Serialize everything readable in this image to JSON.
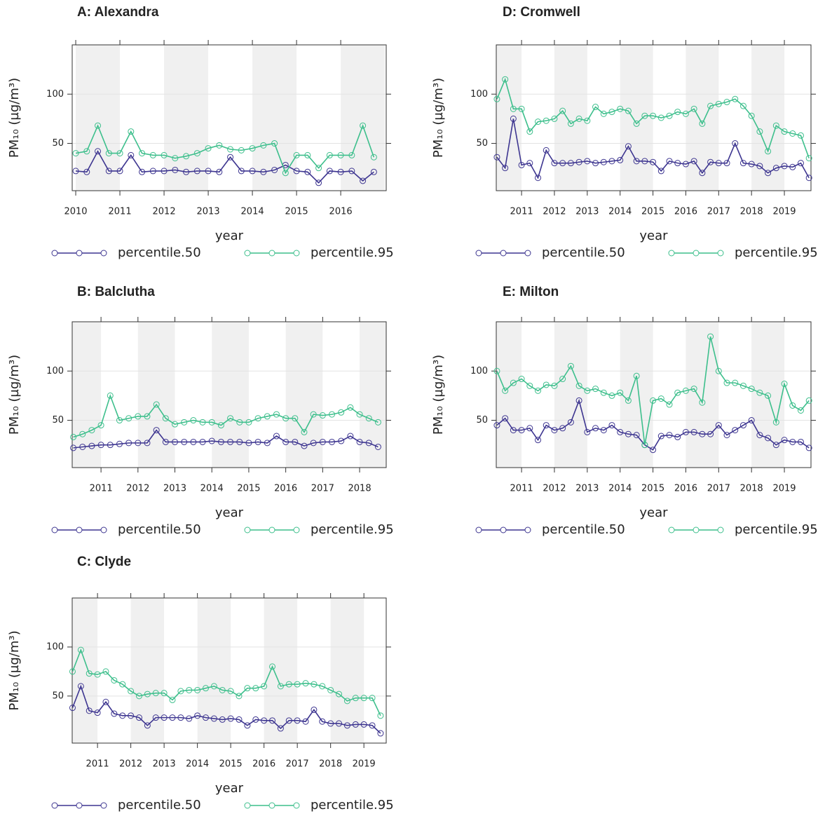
{
  "chart_data": [
    {
      "type": "line",
      "title": "A: Alexandra",
      "x_label": "year",
      "y_label": "PM₁₀ (µg/m³)",
      "x": [
        2010,
        2010.25,
        2010.5,
        2010.75,
        2011,
        2011.25,
        2011.5,
        2011.75,
        2012,
        2012.25,
        2012.5,
        2012.75,
        2013,
        2013.25,
        2013.5,
        2013.75,
        2014,
        2014.25,
        2014.5,
        2014.75,
        2015,
        2015.25,
        2015.5,
        2015.75,
        2016,
        2016.25,
        2016.5,
        2016.75
      ],
      "series": [
        {
          "name": "percentile.50",
          "color": "#3d3590",
          "values": [
            22,
            21,
            42,
            22,
            22,
            38,
            21,
            22,
            22,
            23,
            21,
            22,
            22,
            21,
            36,
            22,
            22,
            21,
            23,
            28,
            22,
            21,
            10,
            22,
            21,
            22,
            12,
            21
          ]
        },
        {
          "name": "percentile.95",
          "color": "#3dbf8c",
          "values": [
            40,
            42,
            68,
            40,
            40,
            62,
            40,
            38,
            38,
            35,
            37,
            40,
            45,
            48,
            44,
            43,
            45,
            48,
            50,
            20,
            38,
            38,
            25,
            38,
            38,
            38,
            68,
            36
          ]
        }
      ],
      "xlim": [
        2009.92,
        2017.03
      ],
      "ylim": [
        2,
        150
      ],
      "xticks": [
        2010,
        2011,
        2012,
        2013,
        2014,
        2015,
        2016
      ],
      "yticks": [
        50,
        100
      ],
      "grid": true,
      "year_shading": true
    },
    {
      "type": "line",
      "title": "B: Balclutha",
      "x_label": "year",
      "y_label": "PM₁₀ (µg/m³)",
      "x": [
        2010.25,
        2010.5,
        2010.75,
        2011,
        2011.25,
        2011.5,
        2011.75,
        2012,
        2012.25,
        2012.5,
        2012.75,
        2013,
        2013.25,
        2013.5,
        2013.75,
        2014,
        2014.25,
        2014.5,
        2014.75,
        2015,
        2015.25,
        2015.5,
        2015.75,
        2016,
        2016.25,
        2016.5,
        2016.75,
        2017,
        2017.25,
        2017.5,
        2017.75,
        2018,
        2018.25,
        2018.5
      ],
      "series": [
        {
          "name": "percentile.50",
          "color": "#3d3590",
          "values": [
            22,
            23,
            24,
            25,
            25,
            26,
            27,
            27,
            27,
            40,
            28,
            28,
            28,
            28,
            28,
            29,
            28,
            28,
            28,
            27,
            28,
            27,
            34,
            28,
            28,
            24,
            27,
            28,
            28,
            29,
            34,
            28,
            27,
            23
          ]
        },
        {
          "name": "percentile.95",
          "color": "#3dbf8c",
          "values": [
            33,
            36,
            40,
            45,
            75,
            50,
            52,
            54,
            54,
            66,
            52,
            46,
            48,
            50,
            48,
            48,
            45,
            52,
            48,
            48,
            52,
            54,
            56,
            52,
            52,
            38,
            56,
            55,
            56,
            58,
            63,
            56,
            52,
            48
          ]
        }
      ],
      "xlim": [
        2010.22,
        2018.72
      ],
      "ylim": [
        2,
        150
      ],
      "xticks": [
        2011,
        2012,
        2013,
        2014,
        2015,
        2016,
        2017,
        2018
      ],
      "yticks": [
        50,
        100
      ],
      "grid": true,
      "year_shading": true
    },
    {
      "type": "line",
      "title": "C: Clyde",
      "x_label": "year",
      "y_label": "PM₁₀ (µg/m³)",
      "x": [
        2010.25,
        2010.5,
        2010.75,
        2011,
        2011.25,
        2011.5,
        2011.75,
        2012,
        2012.25,
        2012.5,
        2012.75,
        2013,
        2013.25,
        2013.5,
        2013.75,
        2014,
        2014.25,
        2014.5,
        2014.75,
        2015,
        2015.25,
        2015.5,
        2015.75,
        2016,
        2016.25,
        2016.5,
        2016.75,
        2017,
        2017.25,
        2017.5,
        2017.75,
        2018,
        2018.25,
        2018.5,
        2018.75,
        2019,
        2019.25,
        2019.5
      ],
      "series": [
        {
          "name": "percentile.50",
          "color": "#3d3590",
          "values": [
            38,
            60,
            35,
            33,
            44,
            32,
            30,
            30,
            28,
            20,
            28,
            28,
            28,
            28,
            27,
            30,
            28,
            27,
            26,
            27,
            26,
            20,
            26,
            25,
            25,
            17,
            25,
            25,
            24,
            36,
            24,
            22,
            22,
            20,
            21,
            21,
            20,
            12
          ]
        },
        {
          "name": "percentile.95",
          "color": "#3dbf8c",
          "values": [
            75,
            97,
            73,
            72,
            75,
            66,
            62,
            55,
            50,
            52,
            53,
            53,
            46,
            55,
            56,
            56,
            58,
            60,
            56,
            55,
            50,
            58,
            58,
            60,
            80,
            60,
            62,
            62,
            63,
            62,
            60,
            56,
            52,
            45,
            48,
            48,
            48,
            30
          ]
        }
      ],
      "xlim": [
        2010.24,
        2019.67
      ],
      "ylim": [
        2,
        150
      ],
      "xticks": [
        2011,
        2012,
        2013,
        2014,
        2015,
        2016,
        2017,
        2018,
        2019
      ],
      "yticks": [
        50,
        100
      ],
      "grid": true,
      "year_shading": true
    },
    {
      "type": "line",
      "title": "D: Cromwell",
      "x_label": "year",
      "y_label": "PM₁₀ (µg/m³)",
      "x": [
        2010.25,
        2010.5,
        2010.75,
        2011,
        2011.25,
        2011.5,
        2011.75,
        2012,
        2012.25,
        2012.5,
        2012.75,
        2013,
        2013.25,
        2013.5,
        2013.75,
        2014,
        2014.25,
        2014.5,
        2014.75,
        2015,
        2015.25,
        2015.5,
        2015.75,
        2016,
        2016.25,
        2016.5,
        2016.75,
        2017,
        2017.25,
        2017.5,
        2017.75,
        2018,
        2018.25,
        2018.5,
        2018.75,
        2019,
        2019.25,
        2019.5,
        2019.75
      ],
      "series": [
        {
          "name": "percentile.50",
          "color": "#3d3590",
          "values": [
            36,
            25,
            75,
            28,
            30,
            15,
            43,
            30,
            30,
            30,
            31,
            32,
            30,
            31,
            32,
            33,
            47,
            32,
            32,
            31,
            22,
            32,
            30,
            29,
            32,
            20,
            31,
            30,
            30,
            50,
            30,
            29,
            27,
            20,
            25,
            27,
            26,
            30,
            15
          ]
        },
        {
          "name": "percentile.95",
          "color": "#3dbf8c",
          "values": [
            95,
            115,
            85,
            85,
            62,
            72,
            73,
            75,
            83,
            70,
            75,
            73,
            87,
            80,
            82,
            85,
            83,
            70,
            78,
            78,
            76,
            78,
            82,
            80,
            85,
            70,
            88,
            90,
            92,
            95,
            88,
            78,
            62,
            42,
            68,
            62,
            60,
            58,
            35
          ]
        }
      ],
      "xlim": [
        2010.23,
        2019.81
      ],
      "ylim": [
        2,
        150
      ],
      "xticks": [
        2011,
        2012,
        2013,
        2014,
        2015,
        2016,
        2017,
        2018,
        2019
      ],
      "yticks": [
        50,
        100
      ],
      "grid": true,
      "year_shading": true
    },
    {
      "type": "line",
      "title": "E: Milton",
      "x_label": "year",
      "y_label": "PM₁₀ (µg/m³)",
      "x": [
        2010.25,
        2010.5,
        2010.75,
        2011,
        2011.25,
        2011.5,
        2011.75,
        2012,
        2012.25,
        2012.5,
        2012.75,
        2013,
        2013.25,
        2013.5,
        2013.75,
        2014,
        2014.25,
        2014.5,
        2014.75,
        2015,
        2015.25,
        2015.5,
        2015.75,
        2016,
        2016.25,
        2016.5,
        2016.75,
        2017,
        2017.25,
        2017.5,
        2017.75,
        2018,
        2018.25,
        2018.5,
        2018.75,
        2019,
        2019.25,
        2019.5,
        2019.75
      ],
      "series": [
        {
          "name": "percentile.50",
          "color": "#3d3590",
          "values": [
            45,
            52,
            40,
            40,
            42,
            30,
            45,
            40,
            42,
            48,
            70,
            38,
            42,
            40,
            45,
            38,
            36,
            35,
            25,
            20,
            34,
            35,
            33,
            38,
            38,
            36,
            36,
            45,
            35,
            40,
            45,
            50,
            35,
            32,
            25,
            30,
            28,
            28,
            22
          ]
        },
        {
          "name": "percentile.95",
          "color": "#3dbf8c",
          "values": [
            100,
            80,
            88,
            92,
            85,
            80,
            86,
            85,
            92,
            105,
            85,
            80,
            82,
            78,
            75,
            78,
            70,
            95,
            25,
            70,
            72,
            66,
            78,
            80,
            82,
            68,
            135,
            100,
            88,
            88,
            85,
            82,
            78,
            75,
            48,
            87,
            65,
            60,
            70
          ]
        }
      ],
      "xlim": [
        2010.23,
        2019.81
      ],
      "ylim": [
        2,
        150
      ],
      "xticks": [
        2011,
        2012,
        2013,
        2014,
        2015,
        2016,
        2017,
        2018,
        2019
      ],
      "yticks": [
        50,
        100
      ],
      "grid": true,
      "year_shading": true
    }
  ]
}
